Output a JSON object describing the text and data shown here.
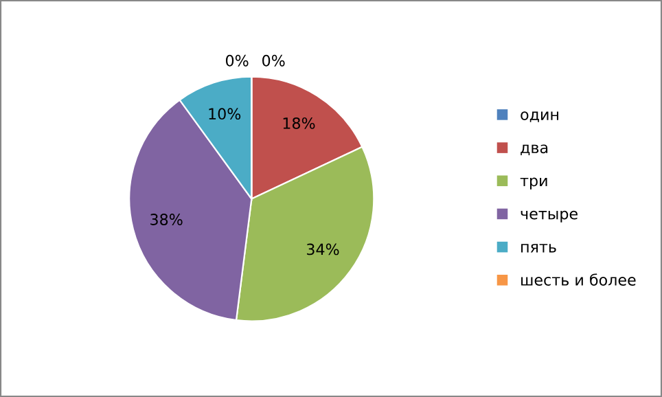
{
  "chart_data": {
    "type": "pie",
    "categories": [
      "один",
      "два",
      "три",
      "четыре",
      "пять",
      "шесть и более"
    ],
    "values": [
      0,
      18,
      34,
      38,
      10,
      0
    ],
    "colors": [
      "#4f81bd",
      "#c0504d",
      "#9bbb59",
      "#8064a2",
      "#4bacc6",
      "#f79646"
    ],
    "value_labels": [
      "0%",
      "18%",
      "34%",
      "38%",
      "10%",
      "0%"
    ],
    "legend": "right"
  }
}
